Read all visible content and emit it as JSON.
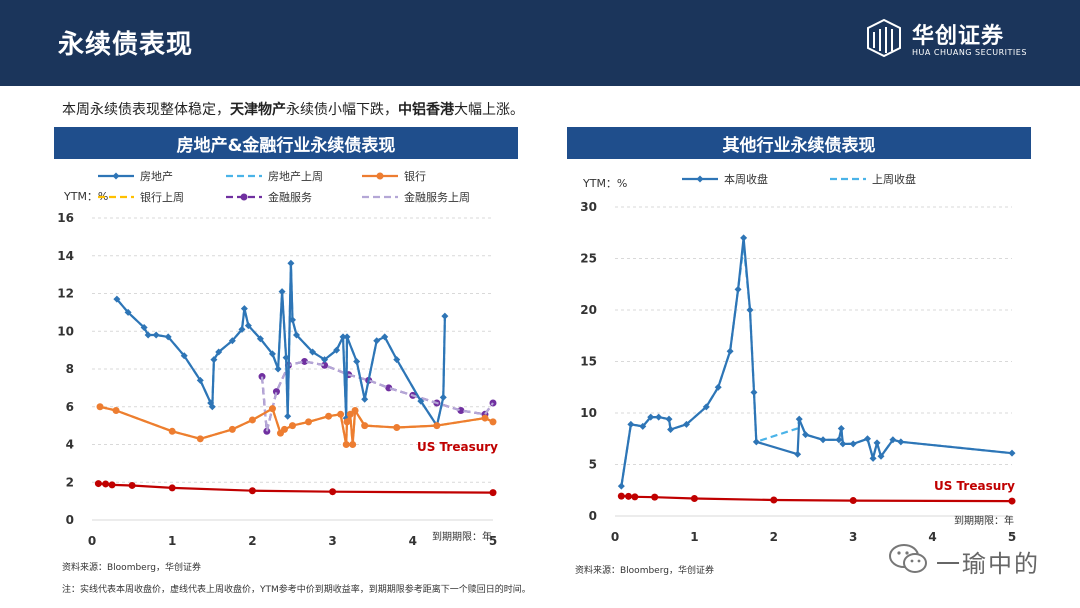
{
  "header": {
    "title": "永续债表现",
    "logo_cn": "华创证券",
    "logo_en": "HUA CHUANG SECURITIES"
  },
  "summary": {
    "part1": "本周永续债表现整体稳定，",
    "bold1": "天津物产",
    "part2": "永续债小幅下跌，",
    "bold2": "中铝香港",
    "part3": "大幅上涨。"
  },
  "panels": {
    "left_title": "房地产&金融行业永续债表现",
    "right_title": "其他行业永续债表现"
  },
  "sources": {
    "left": "资料来源：Bloomberg，华创证券",
    "right": "资料来源：Bloomberg，华创证券"
  },
  "note": "注：实线代表本周收盘价，虚线代表上周收盘价，YTM参考中价到期收益率，到期期限参考距离下一个赎回日的时间。",
  "watermark": "一瑜中的",
  "colors": {
    "header_bg": "#1b355b",
    "panel_title_bg": "#1f4e8c",
    "real_estate": "#2e75b6",
    "real_estate_prev": "#4ab3e8",
    "bank": "#ed7d31",
    "bank_prev": "#ffc000",
    "finance": "#7030a0",
    "finance_prev": "#b4a7d6",
    "treasury": "#c00000"
  },
  "chart_data": [
    {
      "type": "line",
      "ylabel": "YTM：%",
      "xlabel": "到期期限：年",
      "xlim": [
        0,
        5
      ],
      "ylim": [
        0,
        16
      ],
      "xticks": [
        0,
        1,
        2,
        3,
        4,
        5
      ],
      "yticks": [
        0,
        2,
        4,
        6,
        8,
        10,
        12,
        14,
        16
      ],
      "annotation": "US Treasury",
      "legend": [
        "房地产",
        "房地产上周",
        "银行",
        "银行上周",
        "金融服务",
        "金融服务上周"
      ],
      "series": [
        {
          "name": "房地产",
          "style": "solid",
          "color": "#2e75b6",
          "marker": "diamond",
          "x": [
            0.31,
            0.45,
            0.65,
            0.7,
            0.8,
            0.95,
            1.15,
            1.35,
            1.48,
            1.5,
            1.52,
            1.58,
            1.75,
            1.87,
            1.9,
            1.95,
            2.1,
            2.25,
            2.32,
            2.37,
            2.42,
            2.44,
            2.48,
            2.5,
            2.55,
            2.75,
            2.9,
            3.05,
            3.13,
            3.17,
            3.18,
            3.3,
            3.4,
            3.55,
            3.65,
            3.8,
            4.1,
            4.3,
            4.38,
            4.4
          ],
          "y": [
            11.7,
            11.0,
            10.2,
            9.8,
            9.8,
            9.7,
            8.7,
            7.4,
            6.2,
            6.0,
            8.5,
            8.9,
            9.5,
            10.1,
            11.2,
            10.3,
            9.6,
            8.8,
            8.0,
            12.1,
            8.6,
            5.5,
            13.6,
            10.6,
            9.8,
            8.9,
            8.5,
            9.0,
            9.7,
            5.4,
            9.7,
            8.4,
            6.4,
            9.5,
            9.7,
            8.5,
            6.3,
            5.0,
            6.5,
            10.8
          ]
        },
        {
          "name": "房地产上周",
          "style": "dashed",
          "color": "#4ab3e8",
          "x": [
            0.31,
            0.45,
            0.65,
            0.7,
            0.8,
            0.95,
            1.15,
            1.35,
            1.48,
            1.5,
            1.52,
            1.58,
            1.75,
            1.87,
            1.9,
            1.95,
            2.1,
            2.25,
            2.32,
            2.37,
            2.42,
            2.44,
            2.48,
            2.5,
            2.55,
            2.75,
            2.9,
            3.05,
            3.13,
            3.17,
            3.18,
            3.3,
            3.4,
            3.55,
            3.65,
            3.8,
            4.1,
            4.3,
            4.38,
            4.4
          ],
          "y": [
            11.7,
            11.0,
            10.2,
            9.8,
            9.8,
            9.7,
            8.7,
            7.4,
            6.2,
            6.0,
            8.5,
            8.9,
            9.5,
            10.1,
            11.2,
            10.3,
            9.6,
            8.8,
            8.0,
            12.1,
            8.6,
            5.5,
            13.6,
            10.6,
            9.8,
            8.9,
            8.5,
            9.0,
            9.7,
            5.4,
            9.7,
            8.4,
            6.4,
            9.5,
            9.7,
            8.5,
            6.3,
            5.0,
            6.5,
            10.8
          ]
        },
        {
          "name": "银行",
          "style": "solid",
          "color": "#ed7d31",
          "marker": "circle",
          "x": [
            0.1,
            0.3,
            1.0,
            1.35,
            1.75,
            2.0,
            2.25,
            2.35,
            2.4,
            2.5,
            2.7,
            2.95,
            3.1,
            3.17,
            3.18,
            3.22,
            3.25,
            3.28,
            3.4,
            3.8,
            4.3,
            4.9,
            5.0
          ],
          "y": [
            6.0,
            5.8,
            4.7,
            4.3,
            4.8,
            5.3,
            5.9,
            4.6,
            4.8,
            5.0,
            5.2,
            5.5,
            5.6,
            4.0,
            5.2,
            5.6,
            4.0,
            5.8,
            5.0,
            4.9,
            5.0,
            5.4,
            5.2
          ]
        },
        {
          "name": "银行上周",
          "style": "dashed",
          "color": "#ffc000",
          "x": [
            0.1,
            0.3,
            1.0,
            1.35,
            1.75,
            2.0,
            2.25,
            2.35,
            2.4,
            2.5,
            2.7,
            2.95,
            3.1,
            3.17,
            3.18,
            3.22,
            3.25,
            3.28,
            3.4,
            3.8,
            4.3,
            4.9,
            5.0
          ],
          "y": [
            6.0,
            5.8,
            4.7,
            4.3,
            4.8,
            5.3,
            5.9,
            4.6,
            4.8,
            5.0,
            5.2,
            5.5,
            5.6,
            4.0,
            5.2,
            5.6,
            4.0,
            5.8,
            5.0,
            4.9,
            5.0,
            5.4,
            5.2
          ]
        },
        {
          "name": "金融服务",
          "style": "dashed",
          "color": "#7030a0",
          "marker": "circle",
          "x": [
            2.12,
            2.18,
            2.3,
            2.45,
            2.65,
            2.9,
            3.2,
            3.45,
            3.7,
            4.0,
            4.3,
            4.6,
            4.9,
            5.0
          ],
          "y": [
            7.6,
            4.7,
            6.8,
            8.2,
            8.4,
            8.2,
            7.7,
            7.4,
            7.0,
            6.6,
            6.2,
            5.8,
            5.6,
            6.2
          ]
        },
        {
          "name": "金融服务上周",
          "style": "dashed",
          "color": "#b4a7d6",
          "x": [
            2.12,
            2.18,
            2.3,
            2.45,
            2.65,
            2.9,
            3.2,
            3.45,
            3.7,
            4.0,
            4.3,
            4.6,
            4.9,
            5.0
          ],
          "y": [
            7.6,
            4.7,
            6.8,
            8.2,
            8.4,
            8.2,
            7.7,
            7.4,
            7.0,
            6.6,
            6.2,
            5.8,
            5.6,
            6.2
          ]
        },
        {
          "name": "US Treasury",
          "style": "solid",
          "color": "#c00000",
          "marker": "circle",
          "x": [
            0.08,
            0.17,
            0.25,
            0.5,
            1.0,
            2.0,
            3.0,
            5.0
          ],
          "y": [
            1.93,
            1.91,
            1.86,
            1.83,
            1.7,
            1.55,
            1.5,
            1.45
          ]
        }
      ]
    },
    {
      "type": "line",
      "ylabel": "YTM：%",
      "xlabel": "到期期限：年",
      "xlim": [
        0,
        5
      ],
      "ylim": [
        0,
        30
      ],
      "xticks": [
        0,
        1,
        2,
        3,
        4,
        5
      ],
      "yticks": [
        0,
        5,
        10,
        15,
        20,
        25,
        30
      ],
      "annotation": "US Treasury",
      "legend": [
        "本周收盘",
        "上周收盘"
      ],
      "series": [
        {
          "name": "本周收盘",
          "style": "solid",
          "color": "#2e75b6",
          "marker": "diamond",
          "x": [
            0.08,
            0.2,
            0.35,
            0.45,
            0.55,
            0.68,
            0.7,
            0.9,
            1.15,
            1.3,
            1.45,
            1.55,
            1.62,
            1.7,
            1.75,
            1.78,
            2.3,
            2.32,
            2.4,
            2.62,
            2.82,
            2.85,
            2.87,
            3.0,
            3.18,
            3.25,
            3.3,
            3.35,
            3.5,
            3.6,
            5.0
          ],
          "y": [
            2.9,
            8.9,
            8.7,
            9.6,
            9.6,
            9.4,
            8.4,
            8.9,
            10.6,
            12.5,
            16.0,
            22.0,
            27.0,
            20.0,
            12.0,
            7.2,
            6.0,
            9.4,
            7.9,
            7.4,
            7.4,
            8.5,
            7.0,
            7.0,
            7.5,
            5.6,
            7.1,
            5.8,
            7.4,
            7.2,
            6.1
          ]
        },
        {
          "name": "上周收盘",
          "style": "dashed",
          "color": "#4ab3e8",
          "x": [
            0.08,
            0.2,
            0.35,
            0.45,
            0.55,
            0.68,
            0.7,
            0.9,
            1.15,
            1.3,
            1.45,
            1.55,
            1.62,
            1.7,
            1.75,
            1.78,
            2.3,
            2.32,
            2.4,
            2.62,
            2.82,
            2.85,
            2.87,
            3.0,
            3.18,
            3.25,
            3.3,
            3.35,
            3.5,
            3.6,
            5.0
          ],
          "y": [
            2.9,
            8.9,
            8.7,
            9.6,
            9.6,
            9.4,
            8.4,
            8.9,
            10.6,
            12.5,
            16.0,
            22.0,
            26.3,
            20.0,
            12.0,
            7.2,
            8.5,
            9.4,
            7.9,
            7.4,
            7.4,
            8.5,
            7.0,
            7.0,
            7.5,
            5.6,
            7.1,
            5.8,
            7.4,
            7.2,
            6.1
          ]
        },
        {
          "name": "US Treasury",
          "style": "solid",
          "color": "#c00000",
          "marker": "circle",
          "x": [
            0.08,
            0.17,
            0.25,
            0.5,
            1.0,
            2.0,
            3.0,
            5.0
          ],
          "y": [
            1.93,
            1.91,
            1.86,
            1.83,
            1.7,
            1.55,
            1.5,
            1.45
          ]
        }
      ]
    }
  ]
}
